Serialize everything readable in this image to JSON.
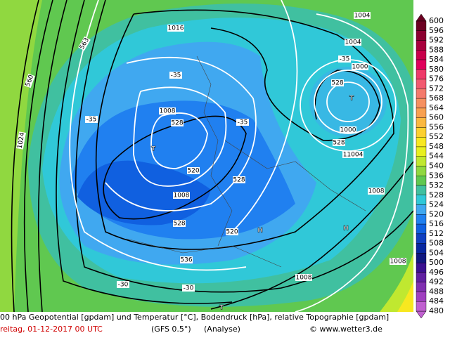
{
  "map": {
    "labels": [
      "563",
      "560",
      "1024",
      "1016",
      "1004",
      "1004",
      "1000",
      "-35",
      "528",
      "T",
      "-35",
      "1008",
      "528",
      "-35",
      "T",
      "-35",
      "1000",
      "528",
      "11004",
      "520",
      "528",
      "1008",
      "1008",
      "H",
      "528",
      "520",
      "H",
      "536",
      "-30",
      "-30",
      "1008",
      "1008",
      "T"
    ]
  },
  "colorbar": {
    "labels": [
      600,
      596,
      592,
      588,
      584,
      580,
      576,
      572,
      568,
      564,
      560,
      556,
      552,
      548,
      544,
      540,
      536,
      532,
      528,
      524,
      520,
      516,
      512,
      508,
      504,
      500,
      496,
      492,
      488,
      484,
      480
    ],
    "colors": [
      "#6b0021",
      "#8b0030",
      "#a8003c",
      "#c8004a",
      "#e0005c",
      "#ee3a6a",
      "#f25a70",
      "#f47a6c",
      "#f69060",
      "#f8a050",
      "#fab840",
      "#fcd030",
      "#f8e820",
      "#e8f020",
      "#c0e830",
      "#90d840",
      "#60c850",
      "#40c0a0",
      "#30c8d8",
      "#40a8f0",
      "#2080f0",
      "#1060e0",
      "#1040c0",
      "#0828a0",
      "#101880",
      "#3a1090",
      "#6020a0",
      "#8030b0",
      "#a040c0",
      "#c060d0"
    ]
  },
  "footer": {
    "line1": "00 hPa Geopotential [gpdam] und Temperatur [°C], Bodendruck [hPa], relative Topographie [gpdam]",
    "date": "reitag, 01-12-2017  00 UTC",
    "model": "(GFS 0.5°)",
    "run": "(Analyse)",
    "credit": "© www.wetter3.de"
  }
}
